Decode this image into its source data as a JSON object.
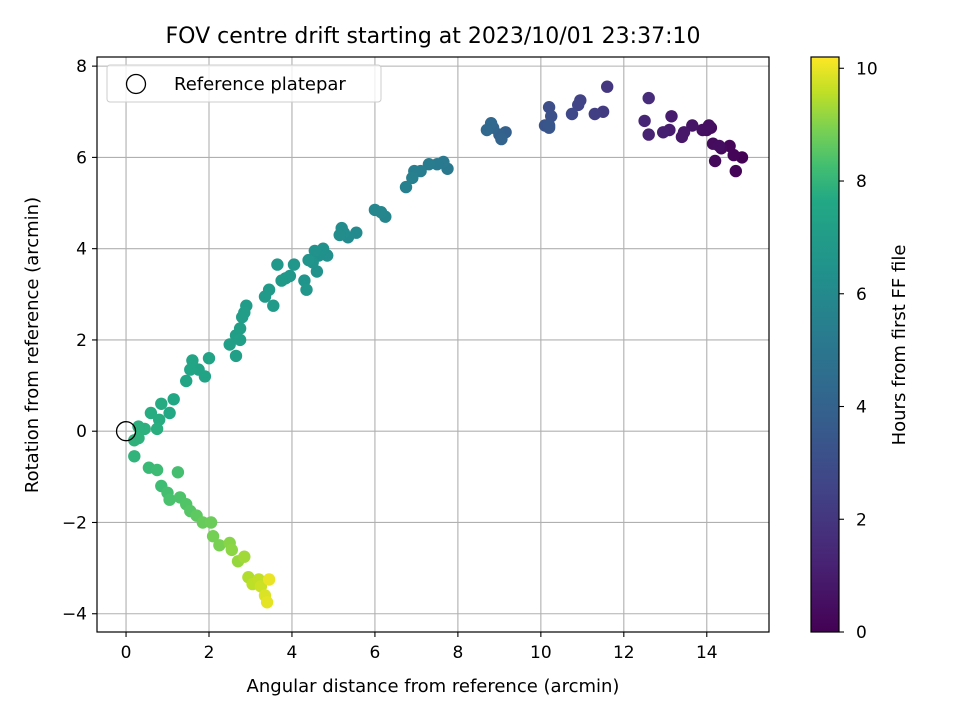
{
  "chart_data": {
    "type": "scatter",
    "title": "FOV centre drift starting at 2023/10/01 23:37:10",
    "xlabel": "Angular distance from reference (arcmin)",
    "ylabel": "Rotation from reference (arcmin)",
    "xlim": [
      -0.7,
      15.5
    ],
    "ylim": [
      -4.4,
      8.2
    ],
    "xticks": [
      0,
      2,
      4,
      6,
      8,
      10,
      12,
      14
    ],
    "xticklabels": [
      "0",
      "2",
      "4",
      "6",
      "8",
      "10",
      "12",
      "14"
    ],
    "yticks": [
      -4,
      -2,
      0,
      2,
      4,
      6,
      8
    ],
    "yticklabels": [
      "−4",
      "−2",
      "0",
      "2",
      "4",
      "6",
      "8"
    ],
    "grid": true,
    "legend": {
      "placement": "top-left",
      "entries": [
        "Reference platepar"
      ]
    },
    "reference_point": {
      "x": 0,
      "y": 0,
      "label": "Reference platepar"
    },
    "colorbar": {
      "label": "Hours from first FF file",
      "colormap": "viridis",
      "range": [
        0,
        10.2
      ],
      "ticks": [
        0,
        2,
        4,
        6,
        8,
        10
      ],
      "ticklabels": [
        "0",
        "2",
        "4",
        "6",
        "8",
        "10"
      ]
    },
    "points": [
      [
        14.85,
        6.0,
        0.05
      ],
      [
        14.7,
        5.7,
        0.1
      ],
      [
        14.65,
        6.05,
        0.15
      ],
      [
        14.55,
        6.25,
        0.2
      ],
      [
        14.35,
        6.2,
        0.25
      ],
      [
        14.2,
        5.92,
        0.3
      ],
      [
        14.15,
        6.3,
        0.35
      ],
      [
        14.1,
        6.65,
        0.4
      ],
      [
        14.0,
        6.6,
        0.45
      ],
      [
        14.05,
        6.7,
        0.5
      ],
      [
        14.3,
        6.25,
        0.45
      ],
      [
        13.9,
        6.6,
        0.55
      ],
      [
        13.65,
        6.7,
        0.7
      ],
      [
        13.45,
        6.55,
        0.8
      ],
      [
        13.4,
        6.45,
        0.85
      ],
      [
        13.15,
        6.9,
        0.95
      ],
      [
        13.1,
        6.6,
        1.0
      ],
      [
        12.95,
        6.55,
        1.1
      ],
      [
        12.6,
        6.5,
        1.2
      ],
      [
        12.5,
        6.8,
        1.35
      ],
      [
        12.6,
        7.3,
        1.6
      ],
      [
        11.6,
        7.55,
        2.0
      ],
      [
        11.5,
        7.0,
        2.2
      ],
      [
        11.3,
        6.95,
        2.3
      ],
      [
        10.95,
        7.25,
        2.5
      ],
      [
        10.9,
        7.15,
        2.6
      ],
      [
        10.75,
        6.95,
        2.75
      ],
      [
        10.2,
        7.1,
        3.0
      ],
      [
        10.25,
        6.9,
        3.1
      ],
      [
        10.1,
        6.7,
        3.25
      ],
      [
        10.2,
        6.65,
        3.35
      ],
      [
        10.2,
        6.7,
        3.4
      ],
      [
        9.15,
        6.55,
        3.9
      ],
      [
        9.0,
        6.5,
        4.0
      ],
      [
        9.05,
        6.4,
        4.1
      ],
      [
        8.85,
        6.65,
        4.2
      ],
      [
        8.8,
        6.75,
        4.3
      ],
      [
        8.7,
        6.6,
        4.35
      ],
      [
        7.75,
        5.75,
        5.1
      ],
      [
        7.65,
        5.9,
        5.15
      ],
      [
        7.5,
        5.85,
        5.2
      ],
      [
        7.3,
        5.85,
        5.3
      ],
      [
        7.1,
        5.7,
        5.35
      ],
      [
        6.95,
        5.7,
        5.4
      ],
      [
        6.9,
        5.55,
        5.45
      ],
      [
        6.75,
        5.35,
        5.5
      ],
      [
        6.25,
        4.7,
        5.75
      ],
      [
        6.15,
        4.8,
        5.8
      ],
      [
        6.0,
        4.85,
        5.85
      ],
      [
        5.55,
        4.35,
        6.0
      ],
      [
        5.35,
        4.25,
        6.05
      ],
      [
        5.2,
        4.45,
        6.1
      ],
      [
        5.25,
        4.35,
        6.1
      ],
      [
        5.15,
        4.3,
        6.15
      ],
      [
        4.85,
        3.85,
        6.3
      ],
      [
        4.75,
        4.0,
        6.35
      ],
      [
        4.65,
        3.85,
        6.4
      ],
      [
        4.55,
        3.95,
        6.45
      ],
      [
        4.6,
        3.5,
        6.45
      ],
      [
        4.5,
        3.7,
        6.5
      ],
      [
        4.4,
        3.75,
        6.55
      ],
      [
        4.3,
        3.3,
        6.6
      ],
      [
        4.35,
        3.1,
        6.65
      ],
      [
        4.05,
        3.65,
        6.65
      ],
      [
        3.95,
        3.4,
        6.7
      ],
      [
        3.85,
        3.35,
        6.75
      ],
      [
        3.75,
        3.3,
        6.8
      ],
      [
        3.65,
        3.65,
        6.75
      ],
      [
        3.45,
        3.1,
        6.85
      ],
      [
        3.35,
        2.95,
        6.9
      ],
      [
        3.55,
        2.75,
        6.9
      ],
      [
        2.9,
        2.75,
        7.0
      ],
      [
        2.8,
        2.5,
        7.05
      ],
      [
        2.85,
        2.6,
        7.05
      ],
      [
        2.75,
        2.25,
        7.1
      ],
      [
        2.65,
        2.1,
        7.1
      ],
      [
        2.75,
        2.0,
        7.15
      ],
      [
        2.5,
        1.9,
        7.2
      ],
      [
        2.65,
        1.65,
        7.2
      ],
      [
        2.0,
        1.6,
        7.35
      ],
      [
        1.9,
        1.2,
        7.4
      ],
      [
        1.75,
        1.35,
        7.4
      ],
      [
        1.6,
        1.55,
        7.45
      ],
      [
        1.55,
        1.35,
        7.5
      ],
      [
        1.45,
        1.1,
        7.5
      ],
      [
        1.15,
        0.7,
        7.6
      ],
      [
        1.05,
        0.4,
        7.65
      ],
      [
        0.85,
        0.6,
        7.7
      ],
      [
        0.8,
        0.25,
        7.75
      ],
      [
        0.6,
        0.4,
        7.75
      ],
      [
        0.75,
        0.05,
        7.8
      ],
      [
        0.45,
        0.05,
        7.85
      ],
      [
        0.3,
        0.1,
        7.85
      ],
      [
        0.2,
        -0.2,
        7.9
      ],
      [
        0.3,
        -0.15,
        7.9
      ],
      [
        0.2,
        -0.55,
        7.95
      ],
      [
        0.55,
        -0.8,
        8.1
      ],
      [
        0.75,
        -0.85,
        8.15
      ],
      [
        0.85,
        -1.2,
        8.2
      ],
      [
        1.0,
        -1.35,
        8.3
      ],
      [
        1.05,
        -1.5,
        8.35
      ],
      [
        1.25,
        -0.9,
        8.3
      ],
      [
        1.3,
        -1.45,
        8.4
      ],
      [
        1.45,
        -1.6,
        8.45
      ],
      [
        1.55,
        -1.75,
        8.5
      ],
      [
        1.7,
        -1.85,
        8.6
      ],
      [
        1.85,
        -2.0,
        8.7
      ],
      [
        2.05,
        -2.0,
        8.75
      ],
      [
        2.1,
        -2.3,
        8.85
      ],
      [
        2.25,
        -2.5,
        8.9
      ],
      [
        2.5,
        -2.45,
        9.05
      ],
      [
        2.55,
        -2.6,
        9.1
      ],
      [
        2.7,
        -2.85,
        9.2
      ],
      [
        2.85,
        -2.75,
        9.3
      ],
      [
        2.95,
        -3.2,
        9.45
      ],
      [
        3.05,
        -3.35,
        9.55
      ],
      [
        3.2,
        -3.25,
        9.6
      ],
      [
        3.25,
        -3.4,
        9.7
      ],
      [
        3.35,
        -3.6,
        9.85
      ],
      [
        3.4,
        -3.75,
        9.95
      ],
      [
        3.45,
        -3.25,
        10.0
      ]
    ]
  }
}
